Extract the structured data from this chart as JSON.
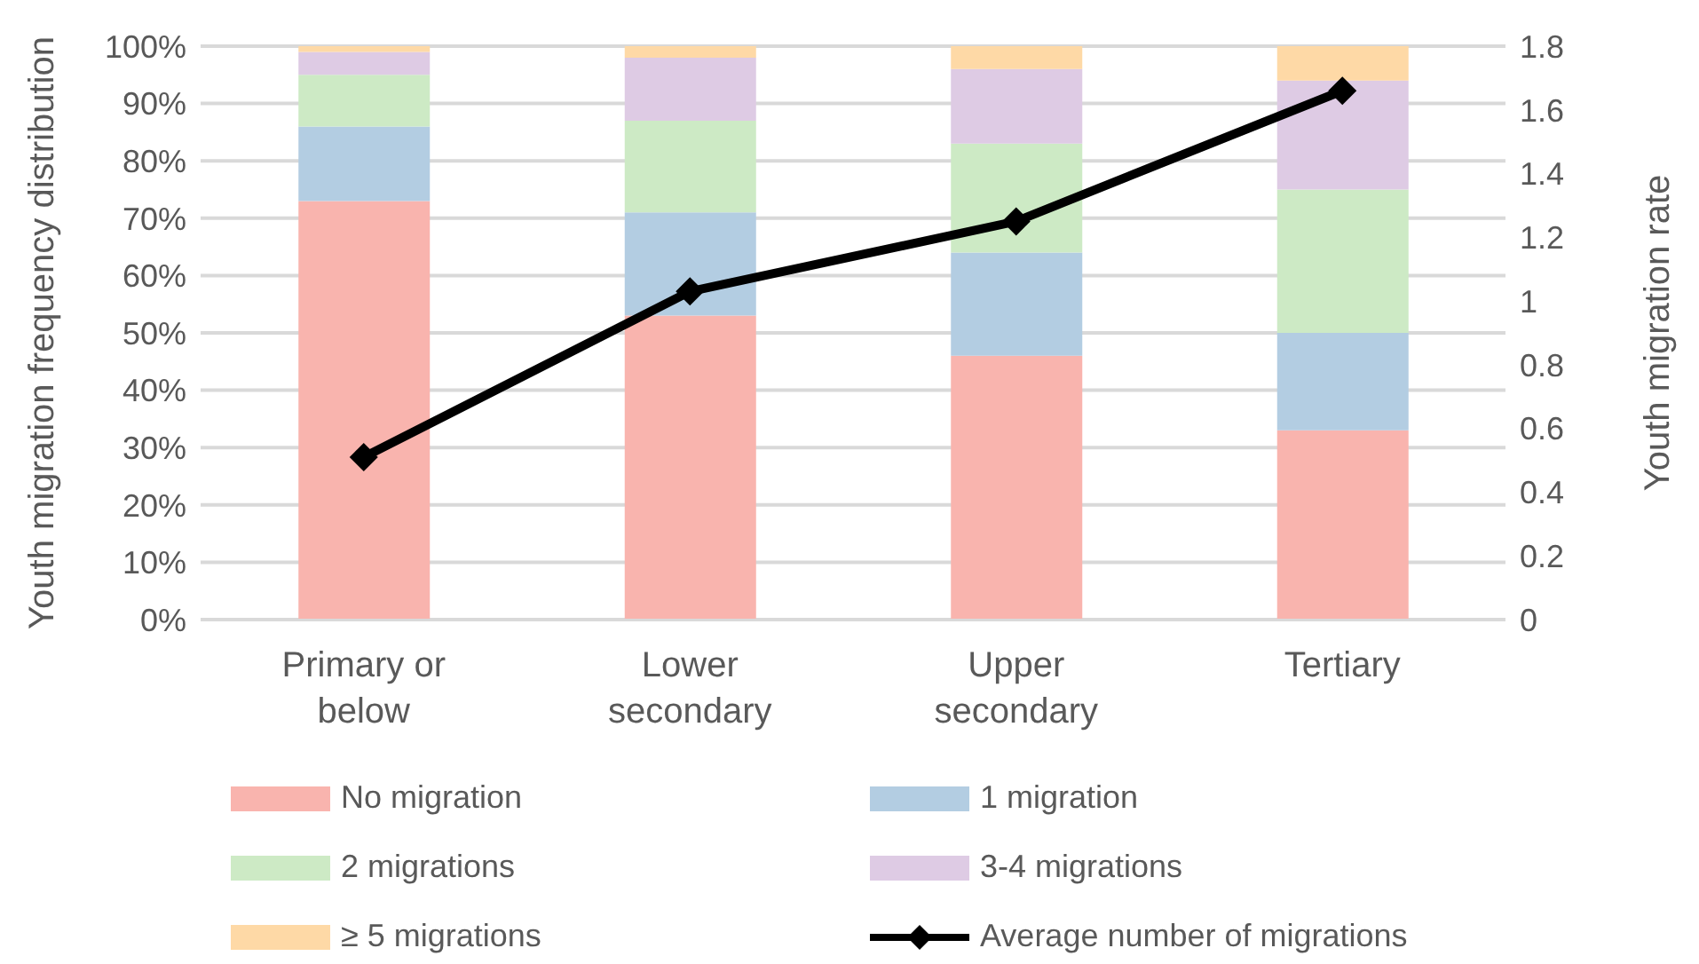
{
  "chart_data": {
    "type": "bar",
    "stacked": true,
    "categories": [
      "Primary or below",
      "Lower secondary",
      "Upper secondary",
      "Tertiary"
    ],
    "ylabel": "Youth migration frequency distribution",
    "y2label": "Youth migration rate",
    "ylim": [
      0,
      100
    ],
    "yticks": [
      {
        "value": 0,
        "label": "0%"
      },
      {
        "value": 10,
        "label": "10%"
      },
      {
        "value": 20,
        "label": "20%"
      },
      {
        "value": 30,
        "label": "30%"
      },
      {
        "value": 40,
        "label": "40%"
      },
      {
        "value": 50,
        "label": "50%"
      },
      {
        "value": 60,
        "label": "60%"
      },
      {
        "value": 70,
        "label": "70%"
      },
      {
        "value": 80,
        "label": "80%"
      },
      {
        "value": 90,
        "label": "90%"
      },
      {
        "value": 100,
        "label": "100%"
      }
    ],
    "y2lim": [
      0,
      1.8
    ],
    "y2ticks": [
      0,
      0.2,
      0.4,
      0.6,
      0.8,
      1,
      1.2,
      1.4,
      1.6,
      1.8
    ],
    "grid": "y",
    "legend": "bottom",
    "series": [
      {
        "name": "No migration",
        "color": "#f9b4ae",
        "values": [
          73,
          53,
          46,
          33
        ]
      },
      {
        "name": "1 migration",
        "color": "#b3cde2",
        "values": [
          13,
          18,
          18,
          17
        ]
      },
      {
        "name": "2 migrations",
        "color": "#cdeac5",
        "values": [
          9,
          16,
          19,
          25
        ]
      },
      {
        "name": "3-4 migrations",
        "color": "#decbe4",
        "values": [
          4,
          11,
          13,
          19
        ]
      },
      {
        "name": "≥ 5 migrations",
        "color": "#fed9a6",
        "values": [
          1,
          2,
          4,
          6
        ]
      },
      {
        "name": "Average number of migrations",
        "type": "line",
        "axis": "y2",
        "color": "#000000",
        "marker": "diamond",
        "values": [
          0.51,
          1.03,
          1.25,
          1.66
        ]
      }
    ]
  }
}
